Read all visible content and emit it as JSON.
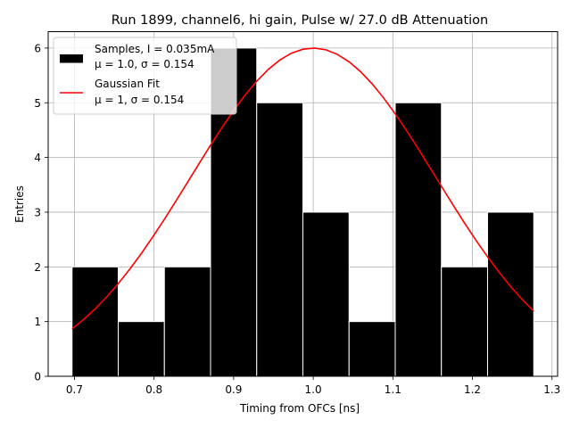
{
  "chart_data": {
    "type": "bar",
    "title": "Run 1899, channel6, hi gain, Pulse w/ 27.0 dB Attenuation",
    "xlabel": "Timing from OFCs [ns]",
    "ylabel": "Entries",
    "xlim": [
      0.667,
      1.307
    ],
    "ylim": [
      0,
      6.3
    ],
    "grid": true,
    "xticks": [
      0.7,
      0.8,
      0.9,
      1.0,
      1.1,
      1.2,
      1.3
    ],
    "xtick_labels": [
      "0.7",
      "0.8",
      "0.9",
      "1.0",
      "1.1",
      "1.2",
      "1.3"
    ],
    "yticks": [
      0,
      1,
      2,
      3,
      4,
      5,
      6
    ],
    "ytick_labels": [
      "0",
      "1",
      "2",
      "3",
      "4",
      "5",
      "6"
    ],
    "histogram": {
      "name": "Samples",
      "color": "#000000",
      "edge_color": "#ffffff",
      "bins": [
        {
          "x0": 0.697,
          "x1": 0.755,
          "count": 2
        },
        {
          "x0": 0.755,
          "x1": 0.813,
          "count": 1
        },
        {
          "x0": 0.813,
          "x1": 0.871,
          "count": 2
        },
        {
          "x0": 0.871,
          "x1": 0.929,
          "count": 6
        },
        {
          "x0": 0.929,
          "x1": 0.987,
          "count": 5
        },
        {
          "x0": 0.987,
          "x1": 1.045,
          "count": 3
        },
        {
          "x0": 1.045,
          "x1": 1.103,
          "count": 1
        },
        {
          "x0": 1.103,
          "x1": 1.161,
          "count": 5
        },
        {
          "x0": 1.161,
          "x1": 1.219,
          "count": 2
        },
        {
          "x0": 1.219,
          "x1": 1.277,
          "count": 3
        }
      ]
    },
    "fit": {
      "name": "Gaussian Fit",
      "color": "#ff0000",
      "amplitude": 6.0,
      "mu": 1.0,
      "sigma": 0.154,
      "x_start": 0.697,
      "x_end": 1.277
    },
    "legend": {
      "position": "top-left",
      "entries": [
        {
          "line1": "Samples, I = 0.035mA",
          "line2": "μ = 1.0, σ = 0.154"
        },
        {
          "line1": "Gaussian Fit",
          "line2": "μ = 1, σ = 0.154"
        }
      ]
    }
  }
}
